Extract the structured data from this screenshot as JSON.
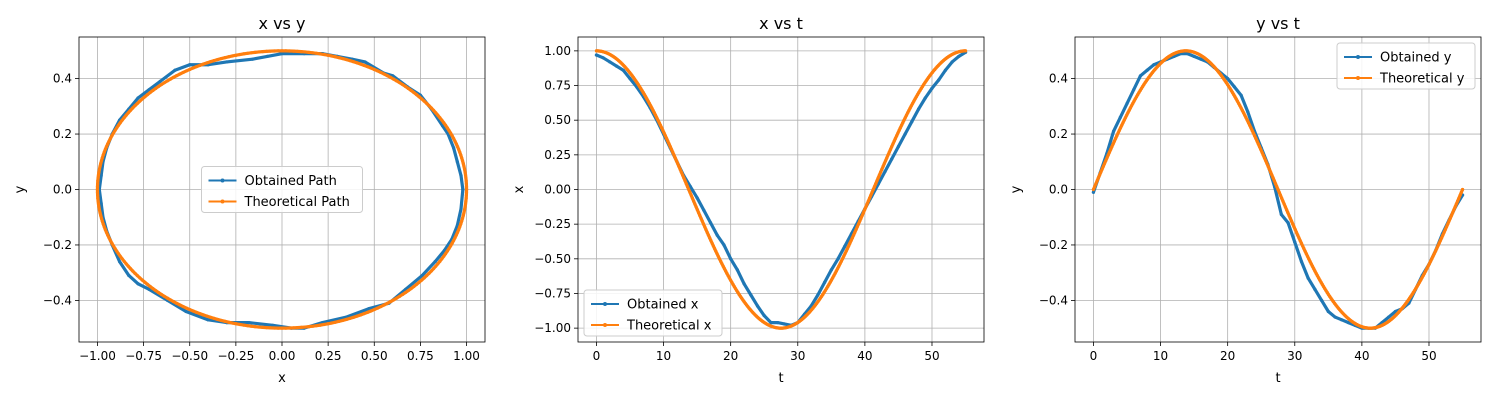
{
  "colors": {
    "obtained": "#1f77b4",
    "theoretical": "#ff7f0e",
    "grid": "#b0b0b0",
    "legend_border": "#cccccc"
  },
  "chart_data": [
    {
      "type": "line",
      "title": "x vs y",
      "xlabel": "x",
      "ylabel": "y",
      "xlim": [
        -1.1,
        1.1
      ],
      "ylim": [
        -0.55,
        0.55
      ],
      "xticks": [
        -1.0,
        -0.75,
        -0.5,
        -0.25,
        0.0,
        0.25,
        0.5,
        0.75,
        1.0
      ],
      "xtick_labels": [
        "−1.00",
        "−0.75",
        "−0.50",
        "−0.25",
        "0.00",
        "0.25",
        "0.50",
        "0.75",
        "1.00"
      ],
      "yticks": [
        -0.4,
        -0.2,
        0.0,
        0.2,
        0.4
      ],
      "ytick_labels": [
        "−0.4",
        "−0.2",
        "0.0",
        "0.2",
        "0.4"
      ],
      "grid": true,
      "legend_position": "center",
      "series": [
        {
          "name": "Obtained Path",
          "color": "#1f77b4",
          "x": [
            0.98,
            0.97,
            0.95,
            0.93,
            0.9,
            0.87,
            0.81,
            0.75,
            0.68,
            0.6,
            0.55,
            0.45,
            0.38,
            0.3,
            0.22,
            0.12,
            0.0,
            -0.08,
            -0.16,
            -0.3,
            -0.4,
            -0.5,
            -0.58,
            -0.66,
            -0.72,
            -0.78,
            -0.83,
            -0.88,
            -0.92,
            -0.95,
            -0.97,
            -0.98,
            -0.99,
            -0.98,
            -0.97,
            -0.95,
            -0.92,
            -0.88,
            -0.83,
            -0.78,
            -0.72,
            -0.62,
            -0.52,
            -0.4,
            -0.3,
            -0.18,
            -0.05,
            0.05,
            0.12,
            0.22,
            0.35,
            0.47,
            0.58,
            0.67,
            0.76,
            0.83,
            0.88,
            0.92,
            0.95,
            0.97,
            0.98
          ],
          "y": [
            0.0,
            0.05,
            0.1,
            0.15,
            0.2,
            0.23,
            0.29,
            0.34,
            0.37,
            0.41,
            0.42,
            0.46,
            0.47,
            0.48,
            0.49,
            0.49,
            0.49,
            0.48,
            0.47,
            0.46,
            0.45,
            0.45,
            0.43,
            0.39,
            0.36,
            0.33,
            0.29,
            0.25,
            0.2,
            0.15,
            0.1,
            0.05,
            0.0,
            -0.05,
            -0.1,
            -0.15,
            -0.2,
            -0.26,
            -0.31,
            -0.34,
            -0.36,
            -0.4,
            -0.44,
            -0.47,
            -0.48,
            -0.48,
            -0.49,
            -0.5,
            -0.5,
            -0.48,
            -0.46,
            -0.43,
            -0.41,
            -0.36,
            -0.31,
            -0.26,
            -0.22,
            -0.18,
            -0.13,
            -0.07,
            0.0
          ]
        },
        {
          "name": "Theoretical Path",
          "color": "#ff7f0e",
          "param": "ellipse",
          "a": 1.0,
          "b": 0.5
        }
      ]
    },
    {
      "type": "line",
      "title": "x vs t",
      "xlabel": "t",
      "ylabel": "x",
      "xlim": [
        -2.75,
        57.75
      ],
      "ylim": [
        -1.1,
        1.1
      ],
      "xticks": [
        0,
        10,
        20,
        30,
        40,
        50
      ],
      "xtick_labels": [
        "0",
        "10",
        "20",
        "30",
        "40",
        "50"
      ],
      "yticks": [
        -1.0,
        -0.75,
        -0.5,
        -0.25,
        0.0,
        0.25,
        0.5,
        0.75,
        1.0
      ],
      "ytick_labels": [
        "−1.00",
        "−0.75",
        "−0.50",
        "−0.25",
        "0.00",
        "0.25",
        "0.50",
        "0.75",
        "1.00"
      ],
      "grid": true,
      "legend_position": "lower left",
      "series": [
        {
          "name": "Obtained x",
          "color": "#1f77b4",
          "x": [
            0,
            1,
            2,
            3,
            4,
            5,
            6,
            7,
            8,
            9,
            10,
            11,
            12,
            13,
            14,
            15,
            16,
            17,
            18,
            19,
            20,
            21,
            22,
            23,
            24,
            25,
            26,
            27,
            28,
            29,
            30,
            31,
            32,
            33,
            34,
            35,
            36,
            37,
            38,
            39,
            40,
            41,
            42,
            43,
            44,
            45,
            46,
            47,
            48,
            49,
            50,
            51,
            52,
            53,
            54,
            55
          ],
          "y": [
            0.97,
            0.95,
            0.92,
            0.89,
            0.86,
            0.8,
            0.74,
            0.67,
            0.59,
            0.5,
            0.4,
            0.3,
            0.2,
            0.1,
            0.02,
            -0.06,
            -0.15,
            -0.24,
            -0.33,
            -0.4,
            -0.5,
            -0.58,
            -0.68,
            -0.76,
            -0.84,
            -0.91,
            -0.96,
            -0.96,
            -0.97,
            -0.98,
            -0.96,
            -0.9,
            -0.84,
            -0.76,
            -0.67,
            -0.58,
            -0.5,
            -0.41,
            -0.32,
            -0.23,
            -0.14,
            -0.05,
            0.04,
            0.13,
            0.22,
            0.31,
            0.4,
            0.49,
            0.58,
            0.66,
            0.73,
            0.79,
            0.86,
            0.92,
            0.96,
            0.99
          ]
        },
        {
          "name": "Theoretical x",
          "color": "#ff7f0e",
          "func": "cos",
          "t_max": 55
        }
      ]
    },
    {
      "type": "line",
      "title": "y vs t",
      "xlabel": "t",
      "ylabel": "y",
      "xlim": [
        -2.75,
        57.75
      ],
      "ylim": [
        -0.55,
        0.55
      ],
      "xticks": [
        0,
        10,
        20,
        30,
        40,
        50
      ],
      "xtick_labels": [
        "0",
        "10",
        "20",
        "30",
        "40",
        "50"
      ],
      "yticks": [
        -0.4,
        -0.2,
        0.0,
        0.2,
        0.4
      ],
      "ytick_labels": [
        "−0.4",
        "−0.2",
        "0.0",
        "0.2",
        "0.4"
      ],
      "grid": true,
      "legend_position": "upper right",
      "series": [
        {
          "name": "Obtained y",
          "color": "#1f77b4",
          "x": [
            0,
            1,
            2,
            3,
            4,
            5,
            6,
            7,
            8,
            9,
            10,
            11,
            12,
            13,
            14,
            15,
            16,
            17,
            18,
            19,
            20,
            21,
            22,
            23,
            24,
            25,
            26,
            27,
            28,
            29,
            30,
            31,
            32,
            33,
            34,
            35,
            36,
            37,
            38,
            39,
            40,
            41,
            42,
            43,
            44,
            45,
            46,
            47,
            48,
            49,
            50,
            51,
            52,
            53,
            54,
            55
          ],
          "y": [
            -0.01,
            0.06,
            0.13,
            0.21,
            0.26,
            0.31,
            0.36,
            0.41,
            0.43,
            0.45,
            0.46,
            0.47,
            0.48,
            0.49,
            0.49,
            0.48,
            0.47,
            0.46,
            0.44,
            0.42,
            0.4,
            0.37,
            0.34,
            0.28,
            0.21,
            0.15,
            0.09,
            0.01,
            -0.09,
            -0.12,
            -0.19,
            -0.26,
            -0.32,
            -0.36,
            -0.4,
            -0.44,
            -0.46,
            -0.47,
            -0.48,
            -0.49,
            -0.5,
            -0.5,
            -0.5,
            -0.48,
            -0.46,
            -0.44,
            -0.43,
            -0.41,
            -0.36,
            -0.31,
            -0.27,
            -0.22,
            -0.16,
            -0.11,
            -0.06,
            -0.02
          ]
        },
        {
          "name": "Theoretical y",
          "color": "#ff7f0e",
          "func": "halfsin",
          "t_max": 55
        }
      ]
    }
  ]
}
